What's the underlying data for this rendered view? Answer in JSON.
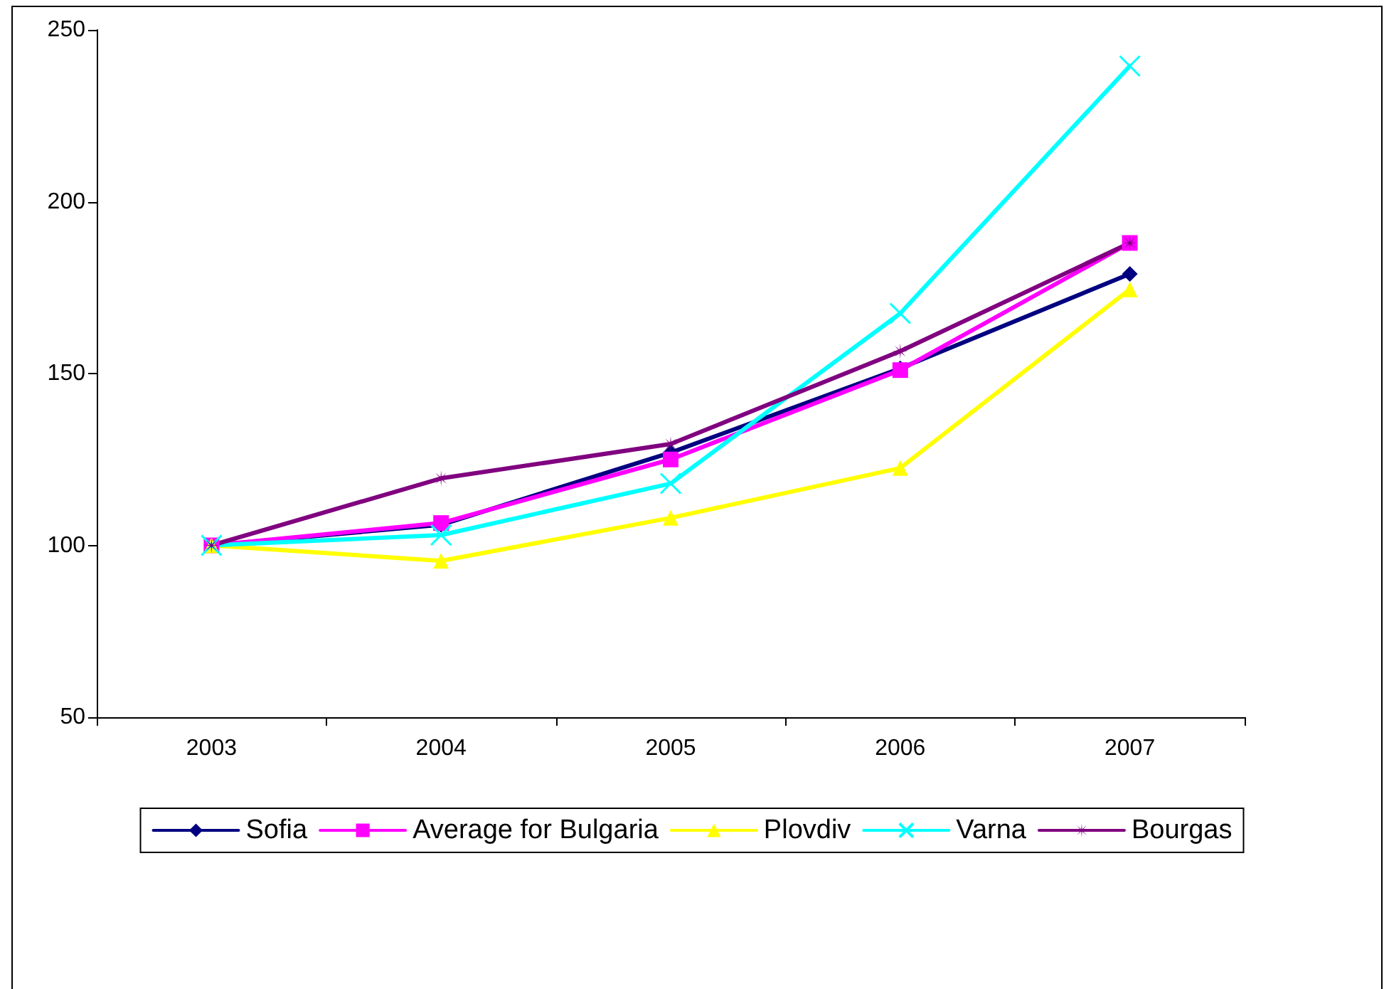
{
  "chart_data": {
    "type": "line",
    "categories": [
      "2003",
      "2004",
      "2005",
      "2006",
      "2007"
    ],
    "series": [
      {
        "name": "Sofia",
        "color": "#000080",
        "marker": "diamond",
        "values": [
          100,
          106,
          127,
          151.5,
          179
        ]
      },
      {
        "name": "Average for Bulgaria",
        "color": "#ff00ff",
        "marker": "square",
        "values": [
          100,
          106.5,
          125,
          151,
          188
        ]
      },
      {
        "name": "Plovdiv",
        "color": "#ffff00",
        "marker": "triangle",
        "values": [
          100,
          95.5,
          108,
          122.5,
          174.5
        ]
      },
      {
        "name": "Varna",
        "color": "#00ffff",
        "marker": "cross",
        "values": [
          100,
          103,
          118,
          167.5,
          239.5
        ]
      },
      {
        "name": "Bourgas",
        "color": "#800080",
        "marker": "star",
        "values": [
          100,
          119.5,
          129.5,
          156.5,
          188
        ]
      }
    ],
    "ylim": [
      50,
      250
    ],
    "yticks": [
      50,
      100,
      150,
      200,
      250
    ],
    "grid": false,
    "legend": "bottom",
    "line_style": "solid"
  }
}
